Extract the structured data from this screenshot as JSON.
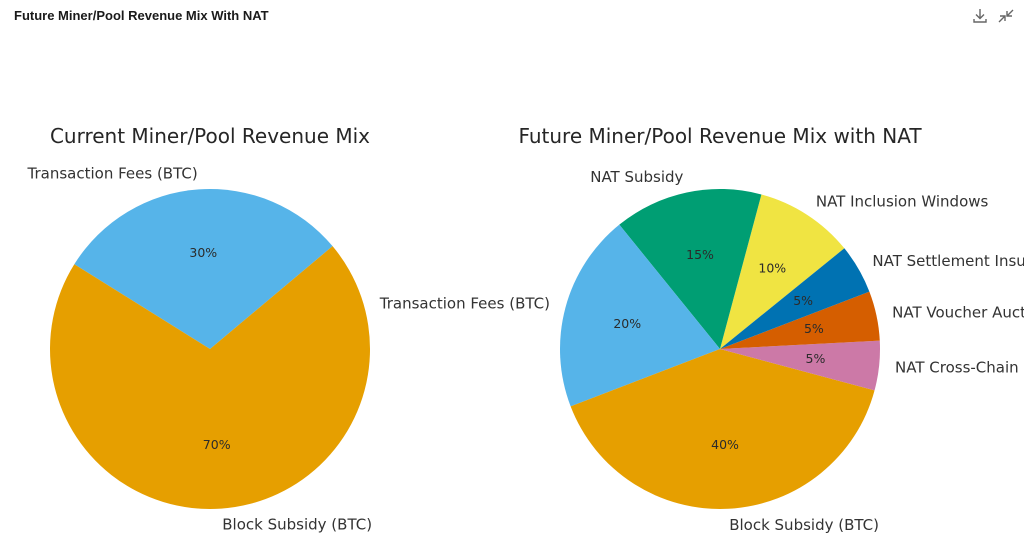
{
  "window": {
    "title": "Future Miner/Pool Revenue Mix With NAT",
    "icons": [
      "download-icon",
      "collapse-icon"
    ]
  },
  "chart_data": [
    {
      "type": "pie",
      "title": "Current Miner/Pool Revenue Mix",
      "labels": [
        "Transaction Fees (BTC)",
        "Block Subsidy (BTC)"
      ],
      "values": [
        30,
        70
      ],
      "value_labels": [
        "30%",
        "70%"
      ],
      "colors": [
        "#56B4E9",
        "#E69F00"
      ]
    },
    {
      "type": "pie",
      "title": "Future Miner/Pool Revenue Mix with NAT",
      "labels": [
        "NAT Inclusion Windows",
        "NAT Subsidy",
        "Transaction Fees (BTC)",
        "Block Subsidy (BTC)",
        "NAT Cross-Chain Proofs",
        "NAT Voucher Auctions",
        "NAT Settlement Insurance"
      ],
      "values": [
        10,
        15,
        20,
        40,
        5,
        5,
        5
      ],
      "value_labels": [
        "10%",
        "15%",
        "20%",
        "40%",
        "5%",
        "5%",
        "5%"
      ],
      "colors": [
        "#F0E442",
        "#009E73",
        "#56B4E9",
        "#E69F00",
        "#CC79A7",
        "#D55E00",
        "#0072B2"
      ]
    }
  ]
}
